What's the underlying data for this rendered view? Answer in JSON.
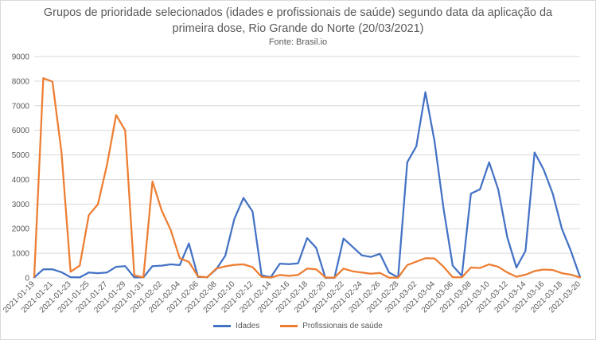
{
  "chart_data": {
    "type": "line",
    "title_line1": "Grupos de prioridade selecionados (idades e profissionais de saúde) segundo data da aplicação da",
    "title_line2": "primeira dose, Rio Grande do Norte (20/03/2021)",
    "subtitle": "Fonte: Brasil.io",
    "ylim": [
      0,
      9000
    ],
    "yticks": [
      0,
      1000,
      2000,
      3000,
      4000,
      5000,
      6000,
      7000,
      8000,
      9000
    ],
    "grid": true,
    "legend_position": "bottom",
    "x_tick_labels": [
      "2021-01-19",
      "2021-01-21",
      "2021-01-23",
      "2021-01-25",
      "2021-01-27",
      "2021-01-29",
      "2021-01-31",
      "2021-02-02",
      "2021-02-04",
      "2021-02-06",
      "2021-02-08",
      "2021-02-10",
      "2021-02-12",
      "2021-02-14",
      "2021-02-16",
      "2021-02-18",
      "2021-02-20",
      "2021-02-22",
      "2021-02-24",
      "2021-02-26",
      "2021-02-28",
      "2021-03-02",
      "2021-03-04",
      "2021-03-06",
      "2021-03-08",
      "2021-03-10",
      "2021-03-12",
      "2021-03-14",
      "2021-03-16",
      "2021-03-18",
      "2021-03-20"
    ],
    "x": [
      "2021-01-19",
      "2021-01-20",
      "2021-01-21",
      "2021-01-22",
      "2021-01-23",
      "2021-01-24",
      "2021-01-25",
      "2021-01-26",
      "2021-01-27",
      "2021-01-28",
      "2021-01-29",
      "2021-01-30",
      "2021-01-31",
      "2021-02-01",
      "2021-02-02",
      "2021-02-03",
      "2021-02-04",
      "2021-02-05",
      "2021-02-06",
      "2021-02-07",
      "2021-02-08",
      "2021-02-09",
      "2021-02-10",
      "2021-02-11",
      "2021-02-12",
      "2021-02-13",
      "2021-02-14",
      "2021-02-15",
      "2021-02-16",
      "2021-02-17",
      "2021-02-18",
      "2021-02-19",
      "2021-02-20",
      "2021-02-21",
      "2021-02-22",
      "2021-02-23",
      "2021-02-24",
      "2021-02-25",
      "2021-02-26",
      "2021-02-27",
      "2021-02-28",
      "2021-03-01",
      "2021-03-02",
      "2021-03-03",
      "2021-03-04",
      "2021-03-05",
      "2021-03-06",
      "2021-03-07",
      "2021-03-08",
      "2021-03-09",
      "2021-03-10",
      "2021-03-11",
      "2021-03-12",
      "2021-03-13",
      "2021-03-14",
      "2021-03-15",
      "2021-03-16",
      "2021-03-17",
      "2021-03-18",
      "2021-03-19",
      "2021-03-20"
    ],
    "series": [
      {
        "name": "Idades",
        "color": "#4472c4",
        "values": [
          20,
          350,
          350,
          230,
          30,
          20,
          220,
          190,
          220,
          450,
          480,
          20,
          20,
          480,
          500,
          550,
          520,
          1400,
          40,
          30,
          350,
          900,
          2400,
          3250,
          2700,
          100,
          30,
          580,
          560,
          590,
          1620,
          1220,
          0,
          0,
          1600,
          1260,
          920,
          850,
          980,
          220,
          20,
          4700,
          5350,
          7550,
          5550,
          2800,
          500,
          80,
          3430,
          3600,
          4700,
          3600,
          1650,
          420,
          1100,
          5100,
          4400,
          3420,
          2000,
          1080,
          30
        ]
      },
      {
        "name": "Profissionais de saúde",
        "color": "#ed7d31",
        "values": [
          50,
          8120,
          7980,
          5100,
          250,
          500,
          2550,
          2990,
          4600,
          6620,
          6000,
          100,
          20,
          3920,
          2750,
          1950,
          800,
          650,
          60,
          20,
          380,
          470,
          530,
          550,
          440,
          40,
          10,
          120,
          80,
          120,
          380,
          350,
          20,
          10,
          380,
          270,
          220,
          170,
          200,
          10,
          10,
          520,
          660,
          800,
          790,
          450,
          30,
          20,
          420,
          400,
          550,
          450,
          220,
          50,
          130,
          280,
          340,
          320,
          190,
          130,
          20
        ]
      }
    ]
  }
}
